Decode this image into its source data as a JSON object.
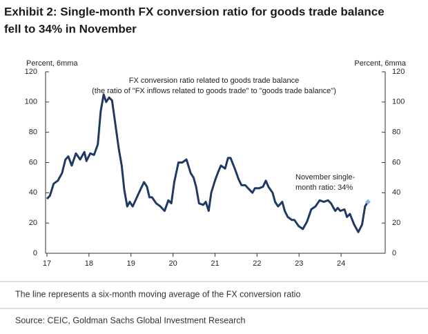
{
  "chart_data": {
    "type": "line",
    "title": [
      "Exhibit 2: Single-month FX conversion ratio for goods trade balance",
      "fell to 34% in November"
    ],
    "y_axis_label": "Percent, 6mma",
    "y2_axis_label": "Percent, 6mma",
    "annotations": [
      "FX conversion ratio related to goods trade balance",
      "(the ratio of \"FX inflows related to goods trade\" to \"goods trade balance\")",
      "November single-",
      "month ratio: 34%"
    ],
    "footnote": "The line represents a six-month moving average of the FX conversion ratio",
    "source": "Source: CEIC, Goldman Sachs Global Investment Research",
    "color": "#1f3864",
    "marker_color": "#8fb4e3",
    "x": [
      17.0,
      17.07,
      17.16,
      17.26,
      17.36,
      17.44,
      17.51,
      17.59,
      17.69,
      17.79,
      17.89,
      17.94,
      18.03,
      18.12,
      18.21,
      18.28,
      18.35,
      18.41,
      18.48,
      18.55,
      18.61,
      18.71,
      18.78,
      18.84,
      18.91,
      18.97,
      19.04,
      19.14,
      19.24,
      19.31,
      19.38,
      19.44,
      19.5,
      19.6,
      19.7,
      19.8,
      19.89,
      19.96,
      20.03,
      20.13,
      20.22,
      20.32,
      20.42,
      20.49,
      20.55,
      20.62,
      20.72,
      20.78,
      20.85,
      20.91,
      21.01,
      21.08,
      21.14,
      21.24,
      21.31,
      21.37,
      21.47,
      21.56,
      21.63,
      21.72,
      21.82,
      21.89,
      21.95,
      22.05,
      22.14,
      22.21,
      22.27,
      22.37,
      22.43,
      22.5,
      22.6,
      22.66,
      22.73,
      22.83,
      22.89,
      22.99,
      23.09,
      23.19,
      23.29,
      23.39,
      23.49,
      23.59,
      23.69,
      23.76,
      23.86,
      23.92,
      23.98,
      24.08,
      24.14,
      24.21,
      24.31,
      24.41,
      24.5,
      24.57,
      24.64
    ],
    "values": [
      36,
      38,
      46,
      48,
      53,
      62,
      64,
      58,
      66,
      62,
      67,
      61,
      66,
      65,
      72,
      94,
      105,
      100,
      103,
      101,
      89,
      69,
      58,
      42,
      31,
      34,
      31,
      37,
      43,
      47,
      44,
      37,
      37,
      33,
      31,
      28,
      35,
      33,
      47,
      60,
      60,
      62,
      53,
      50,
      44,
      33,
      32,
      34,
      28,
      40,
      49,
      54,
      58,
      56,
      63,
      63,
      56,
      49,
      45,
      45,
      42,
      40,
      43,
      43,
      44,
      48,
      44,
      40,
      34,
      31,
      34,
      28,
      24,
      22,
      22,
      18,
      16,
      21,
      29,
      31,
      35,
      34,
      35,
      33,
      28,
      30,
      28,
      29,
      24,
      26,
      19,
      14,
      19,
      31,
      34
    ],
    "xlim": [
      17,
      25.05
    ],
    "xticks": [
      17,
      18,
      19,
      20,
      21,
      22,
      23,
      24
    ],
    "ylim": [
      0,
      120
    ],
    "yticks": [
      0,
      20,
      40,
      60,
      80,
      100,
      120
    ],
    "y2lim": [
      0,
      120
    ],
    "y2ticks": [
      0,
      20,
      40,
      60,
      80,
      100,
      120
    ]
  }
}
